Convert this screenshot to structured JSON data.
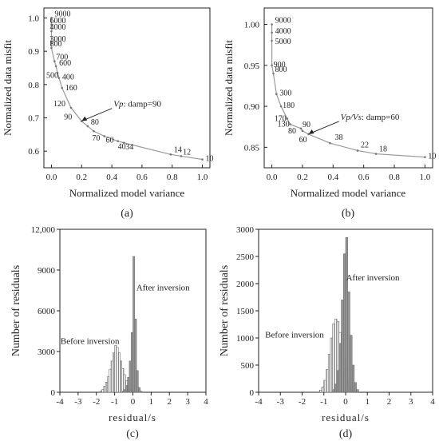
{
  "chart_data": [
    {
      "panel": "a",
      "type": "line",
      "caption": "(a)",
      "xlabel": "Normalized model variance",
      "ylabel": "Normalized data misfit",
      "xlim": [
        -0.05,
        1.05
      ],
      "ylim": [
        0.55,
        1.03
      ],
      "xticks": [
        0.0,
        0.2,
        0.4,
        0.6,
        0.8,
        1.0
      ],
      "yticks": [
        0.6,
        0.7,
        0.8,
        0.9,
        1.0
      ],
      "xtick_labels": [
        "0.0",
        "0.2",
        "0.4",
        "0.6",
        "0.8",
        "1.0"
      ],
      "ytick_labels": [
        "0.6",
        "0.7",
        "0.8",
        "0.9",
        "1.0"
      ],
      "annotation": {
        "var": "Vp",
        "rest": ": damp=90",
        "x": 0.2,
        "y": 0.69
      },
      "points": [
        {
          "label": "9000",
          "x": 0.0,
          "y": 1.0
        },
        {
          "label": "6000",
          "x": 0.0,
          "y": 0.98
        },
        {
          "label": "4000",
          "x": 0.0,
          "y": 0.96
        },
        {
          "label": "3000",
          "x": 0.0,
          "y": 0.925
        },
        {
          "label": "800",
          "x": 0.0,
          "y": 0.91
        },
        {
          "label": "700",
          "x": 0.02,
          "y": 0.87
        },
        {
          "label": "600",
          "x": 0.03,
          "y": 0.855
        },
        {
          "label": "500",
          "x": 0.04,
          "y": 0.835
        },
        {
          "label": "400",
          "x": 0.05,
          "y": 0.82
        },
        {
          "label": "160",
          "x": 0.07,
          "y": 0.79
        },
        {
          "label": "120",
          "x": 0.13,
          "y": 0.73
        },
        {
          "label": "90",
          "x": 0.2,
          "y": 0.69
        },
        {
          "label": "80",
          "x": 0.24,
          "y": 0.675
        },
        {
          "label": "70",
          "x": 0.28,
          "y": 0.66
        },
        {
          "label": "60",
          "x": 0.35,
          "y": 0.645
        },
        {
          "label": "40",
          "x": 0.44,
          "y": 0.63
        },
        {
          "label": "34",
          "x": 0.48,
          "y": 0.625
        },
        {
          "label": "14",
          "x": 0.79,
          "y": 0.59
        },
        {
          "label": "12",
          "x": 0.86,
          "y": 0.585
        },
        {
          "label": "10",
          "x": 1.0,
          "y": 0.575
        }
      ]
    },
    {
      "panel": "b",
      "type": "line",
      "caption": "(b)",
      "xlabel": "Normalized model variance",
      "ylabel": "Normalized data misfit",
      "xlim": [
        -0.05,
        1.05
      ],
      "ylim": [
        0.825,
        1.02
      ],
      "xticks": [
        0.0,
        0.2,
        0.4,
        0.6,
        0.8,
        1.0
      ],
      "yticks": [
        0.85,
        0.9,
        0.95,
        1.0
      ],
      "xtick_labels": [
        "0.0",
        "0.2",
        "0.4",
        "0.6",
        "0.8",
        "1.0"
      ],
      "ytick_labels": [
        "0.85",
        "0.90",
        "0.95",
        "1.00"
      ],
      "annotation": {
        "var": "Vp/Vs",
        "rest": ": damp=60",
        "x": 0.24,
        "y": 0.866
      },
      "points": [
        {
          "label": "9000",
          "x": 0.0,
          "y": 1.0
        },
        {
          "label": "4000",
          "x": 0.0,
          "y": 0.99
        },
        {
          "label": "5000",
          "x": 0.0,
          "y": 0.98
        },
        {
          "label": "900",
          "x": 0.0,
          "y": 0.95
        },
        {
          "label": "800",
          "x": 0.01,
          "y": 0.94
        },
        {
          "label": "300",
          "x": 0.03,
          "y": 0.915
        },
        {
          "label": "180",
          "x": 0.06,
          "y": 0.9
        },
        {
          "label": "170",
          "x": 0.1,
          "y": 0.885
        },
        {
          "label": "130",
          "x": 0.12,
          "y": 0.878
        },
        {
          "label": "90",
          "x": 0.19,
          "y": 0.873
        },
        {
          "label": "80",
          "x": 0.2,
          "y": 0.87
        },
        {
          "label": "60",
          "x": 0.24,
          "y": 0.866
        },
        {
          "label": "38",
          "x": 0.38,
          "y": 0.855
        },
        {
          "label": "22",
          "x": 0.56,
          "y": 0.846
        },
        {
          "label": "18",
          "x": 0.68,
          "y": 0.842
        },
        {
          "label": "10",
          "x": 1.0,
          "y": 0.838
        }
      ]
    },
    {
      "panel": "c",
      "type": "histogram",
      "caption": "(c)",
      "xlabel": "residual/s",
      "ylabel": "Number of residuals",
      "xlim": [
        -4,
        4
      ],
      "ylim": [
        0,
        12000
      ],
      "xticks": [
        -4,
        -3,
        -2,
        -1,
        0,
        1,
        2,
        3,
        4
      ],
      "yticks": [
        0,
        3000,
        6000,
        9000,
        12000
      ],
      "xtick_labels": [
        "-4",
        "-3",
        "-2",
        "-1",
        "0",
        "1",
        "2",
        "3",
        "4"
      ],
      "ytick_labels": [
        "0",
        "3000",
        "6000",
        "9000",
        "12,000"
      ],
      "bin_width": 0.1,
      "series": [
        {
          "name": "Before inversion",
          "style": "white",
          "bin_starts": [
            -1.8,
            -1.7,
            -1.6,
            -1.5,
            -1.4,
            -1.3,
            -1.2,
            -1.1,
            -1.0,
            -0.9,
            -0.8,
            -0.7,
            -0.6,
            -0.5,
            -0.4,
            -0.3,
            -0.2,
            -0.1,
            0.0
          ],
          "values": [
            100,
            200,
            450,
            750,
            1150,
            1700,
            2300,
            2900,
            3450,
            3300,
            2900,
            2300,
            1750,
            1300,
            850,
            500,
            250,
            120,
            40
          ]
        },
        {
          "name": "After inversion",
          "style": "gray",
          "bin_starts": [
            -0.6,
            -0.5,
            -0.4,
            -0.3,
            -0.2,
            -0.1,
            0.0,
            0.1,
            0.2,
            0.3,
            0.4
          ],
          "values": [
            80,
            200,
            500,
            1100,
            2300,
            4400,
            10000,
            5400,
            1600,
            350,
            80
          ]
        }
      ],
      "labels": [
        {
          "text": "Before inversion",
          "x": -2.35,
          "y": 3550
        },
        {
          "text": "After inversion",
          "x": 1.65,
          "y": 7500
        }
      ]
    },
    {
      "panel": "d",
      "type": "histogram",
      "caption": "(d)",
      "xlabel": "residual/s",
      "ylabel": "Number of residuals",
      "xlim": [
        -4,
        4
      ],
      "ylim": [
        0,
        3000
      ],
      "xticks": [
        -4,
        -3,
        -2,
        -1,
        0,
        1,
        2,
        3,
        4
      ],
      "yticks": [
        0,
        500,
        1000,
        1500,
        2000,
        2500,
        3000
      ],
      "xtick_labels": [
        "-4",
        "-3",
        "-2",
        "-1",
        "0",
        "1",
        "2",
        "3",
        "4"
      ],
      "ytick_labels": [
        "0",
        "500",
        "1000",
        "1500",
        "2000",
        "2500",
        "3000"
      ],
      "bin_width": 0.1,
      "series": [
        {
          "name": "Before inversion",
          "style": "white",
          "bin_starts": [
            -1.2,
            -1.1,
            -1.0,
            -0.9,
            -0.8,
            -0.7,
            -0.6,
            -0.5,
            -0.4,
            -0.3,
            -0.2,
            -0.1,
            0.0,
            0.1,
            0.2,
            0.3
          ],
          "values": [
            40,
            100,
            220,
            420,
            700,
            1000,
            1260,
            1350,
            1300,
            1100,
            850,
            600,
            400,
            220,
            100,
            40
          ]
        },
        {
          "name": "After inversion",
          "style": "gray",
          "bin_starts": [
            -0.6,
            -0.5,
            -0.4,
            -0.3,
            -0.2,
            -0.1,
            0.0,
            0.1,
            0.2,
            0.3,
            0.4,
            0.5
          ],
          "values": [
            50,
            150,
            400,
            900,
            1700,
            2550,
            2850,
            1850,
            1050,
            500,
            180,
            50
          ]
        }
      ],
      "labels": [
        {
          "text": "Before inversion",
          "x": -2.35,
          "y": 1010
        },
        {
          "text": "After inversion",
          "x": 1.25,
          "y": 2060
        }
      ]
    }
  ]
}
